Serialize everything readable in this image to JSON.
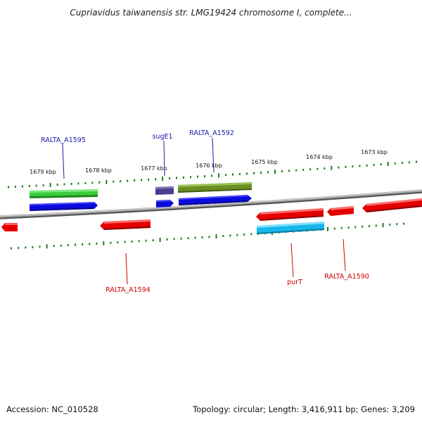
{
  "title": "Cupriavidus taiwanensis str. LMG19424 chromosome I, complete...",
  "colors": {
    "backbone": "#8a8a8a",
    "tick": "#1f7a1f",
    "label_forward": "#1a1aa6",
    "label_reverse": "#cc0000",
    "gene_blue": "#0b0bdc",
    "gene_red": "#e40000",
    "gene_green": "#3ccc3c",
    "gene_olive": "#6b8e23",
    "gene_slate": "#4a3f8f",
    "gene_cyan": "#18b8ea"
  },
  "scale_ticks": [
    "1679 kbp",
    "1678 kbp",
    "1677 kbp",
    "1676 kbp",
    "1675 kbp",
    "1674 kbp",
    "1673 kbp"
  ],
  "gene_labels": {
    "ralta_a1595": "RALTA_A1595",
    "suge1": "sugE1",
    "ralta_a1592": "RALTA_A1592",
    "ralta_a1594": "RALTA_A1594",
    "purt": "purT",
    "ralta_a1590": "RALTA_A1590"
  },
  "footer": {
    "accession": "Accession: NC_010528",
    "summary": "Topology: circular; Length: 3,416,911 bp; Genes: 3,209"
  }
}
